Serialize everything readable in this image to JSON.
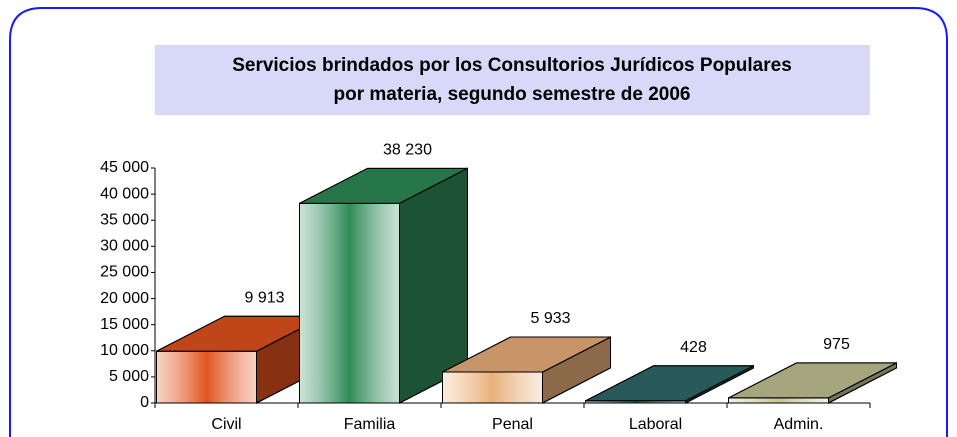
{
  "chart_data": {
    "type": "bar3d",
    "title_lines": [
      "Servicios brindados por los Consultorios Jurídicos Populares",
      "por materia, segundo semestre de 2006"
    ],
    "categories": [
      "Civil",
      "Familia",
      "Penal",
      "Laboral",
      "Admin."
    ],
    "values": [
      9913,
      38230,
      5933,
      428,
      975
    ],
    "value_labels": [
      "9 913",
      "38 230",
      "5 933",
      "428",
      "975"
    ],
    "colors": [
      "#e2521e",
      "#2e8b57",
      "#eab07a",
      "#2f6a6a",
      "#c4c494"
    ],
    "ylim": [
      0,
      45000
    ],
    "yticks": [
      0,
      {
        "value": 5000,
        "label": "5 000"
      },
      {
        "value": 10000,
        "label": "10 000"
      },
      {
        "value": 15000,
        "label": "15 000"
      },
      {
        "value": 20000,
        "label": "20 000"
      },
      {
        "value": 25000,
        "label": "25 000"
      },
      {
        "value": 30000,
        "label": "30 000"
      },
      {
        "value": 35000,
        "label": "35 000"
      },
      {
        "value": 40000,
        "label": "40 000"
      },
      {
        "value": 45000,
        "label": "45 000"
      }
    ]
  }
}
